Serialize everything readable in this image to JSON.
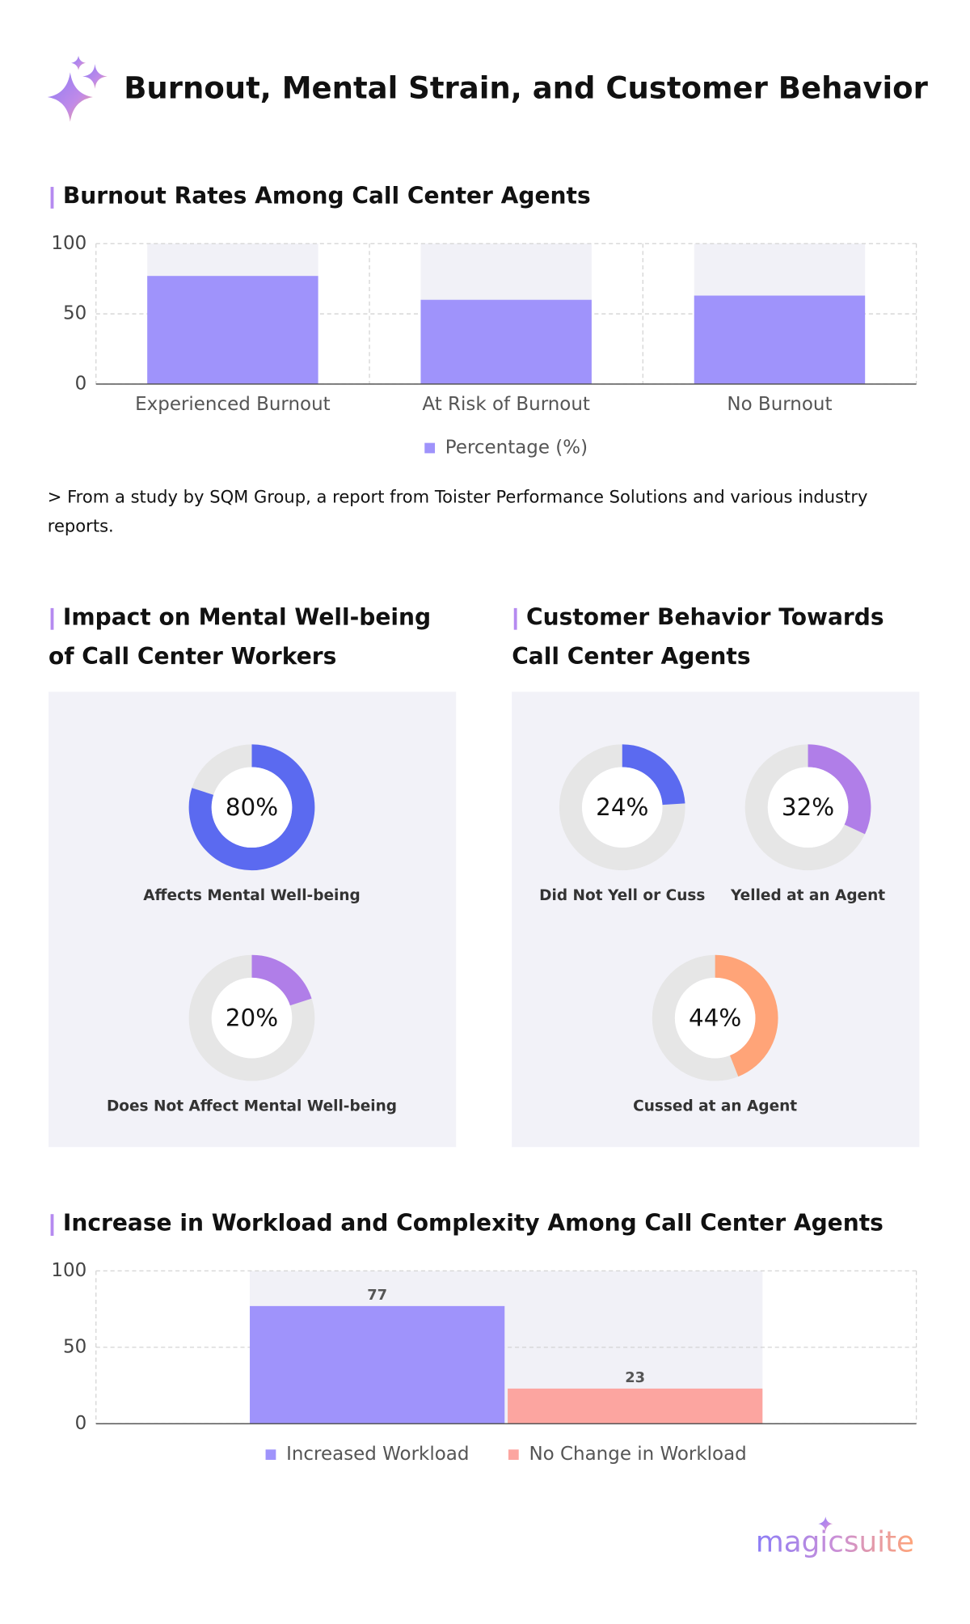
{
  "title": "Burnout, Mental Strain, and Customer Behavior",
  "note": " > From a study by SQM Group, a report from Toister Performance Solutions and various industry reports.",
  "brand": "magicsuite",
  "chart_data": [
    {
      "type": "bar",
      "title": "Burnout Rates Among Call Center Agents",
      "categories": [
        "Experienced Burnout",
        "At Risk of Burnout",
        "No Burnout"
      ],
      "series": [
        {
          "name": "Percentage (%)",
          "color": "#9f93fb",
          "values": [
            77,
            60,
            63
          ]
        }
      ],
      "ylim": [
        0,
        100
      ],
      "yticks": [
        0,
        50,
        100
      ],
      "grid": true,
      "legend": "bottom"
    },
    {
      "type": "donut",
      "title": "Impact on Mental Well-being of Call Center Workers",
      "categories": [
        "Affects Mental Well-being",
        "Does Not Affect Mental Well-being"
      ],
      "values": [
        80,
        20
      ],
      "value_labels": [
        "80%",
        "20%"
      ],
      "colors": [
        "#5b6af0",
        "#b07ee8"
      ]
    },
    {
      "type": "donut",
      "title": "Customer Behavior Towards Call Center Agents",
      "categories": [
        "Did Not Yell or Cuss",
        "Yelled at an Agent",
        "Cussed at an Agent"
      ],
      "values": [
        24,
        32,
        44
      ],
      "value_labels": [
        "24%",
        "32%",
        "44%"
      ],
      "colors": [
        "#5b6af0",
        "#b07ee8",
        "#ffa478"
      ]
    },
    {
      "type": "bar",
      "title": "Increase in Workload and Complexity Among Call Center Agents",
      "categories": [
        null
      ],
      "series": [
        {
          "name": "Increased Workload",
          "color": "#9f93fb",
          "values": [
            77
          ]
        },
        {
          "name": "No Change in Workload",
          "color": "#fca5a0",
          "values": [
            23
          ]
        }
      ],
      "ylim": [
        0,
        100
      ],
      "yticks": [
        0,
        50,
        100
      ],
      "grid": true,
      "legend": "bottom",
      "data_labels": true
    }
  ]
}
